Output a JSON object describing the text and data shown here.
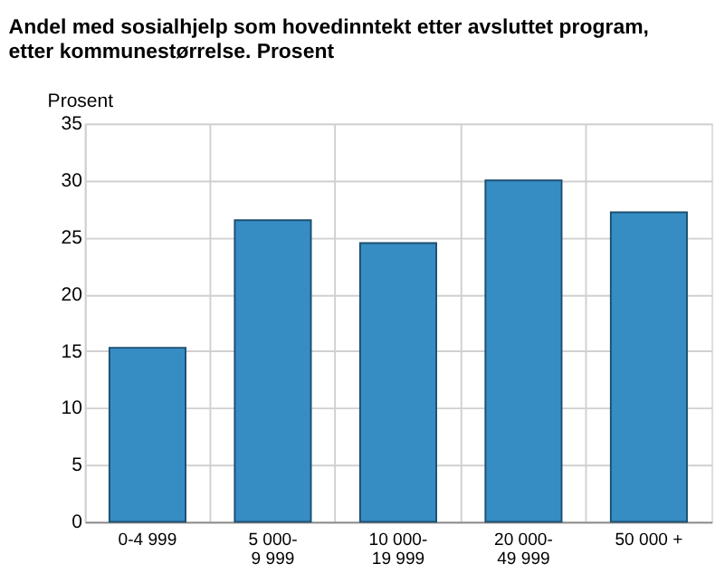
{
  "chart_data": {
    "type": "bar",
    "title": [
      "Andel med sosialhjelp som hovedinntekt etter avsluttet program,",
      "etter kommunestørrelse. Prosent"
    ],
    "ylabel": "Prosent",
    "categories": [
      "0-4 999",
      "5 000-\n9 999",
      "10 000-\n19 999",
      "20 000-\n49 999",
      "50 000 +"
    ],
    "values": [
      15.3,
      26.5,
      24.5,
      30.0,
      27.2
    ],
    "color": "#368dc4",
    "ylim": [
      0,
      35
    ],
    "yticks": [
      0,
      5,
      10,
      15,
      20,
      25,
      30,
      35
    ],
    "grid": true
  }
}
